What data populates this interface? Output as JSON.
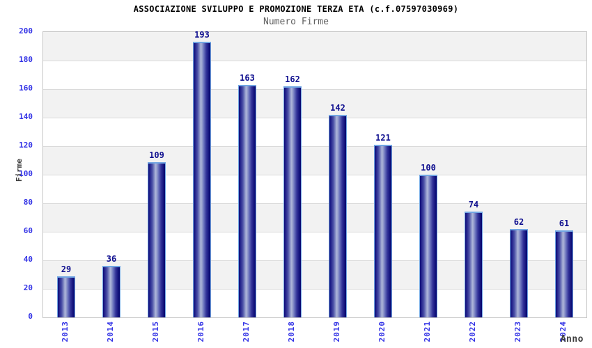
{
  "chart_data": {
    "type": "bar",
    "title": "ASSOCIAZIONE SVILUPPO E PROMOZIONE TERZA ETA (c.f.07597030969)",
    "subtitle": "Numero Firme",
    "xlabel": "Anno",
    "ylabel": "Firme",
    "categories": [
      "2013",
      "2014",
      "2015",
      "2016",
      "2017",
      "2018",
      "2019",
      "2020",
      "2021",
      "2022",
      "2023",
      "2024"
    ],
    "values": [
      29,
      36,
      109,
      193,
      163,
      162,
      142,
      121,
      100,
      74,
      62,
      61
    ],
    "ylim": [
      0,
      200
    ],
    "ytick_step": 20,
    "grid": true,
    "legend": "none",
    "bands": "alternating gray/white horizontal bands of 20 units",
    "colors": {
      "title_color": "#000000",
      "subtitle_color": "#5f5f5f",
      "axis_title_color": "#3d3d3d",
      "tick_label": "#3333e6",
      "value_label": "#0f0f8f",
      "bar_dark": "#0a0a78",
      "bar_light": "#aeb6da",
      "bar_outline": "#72a6e3",
      "band_gray": "#f2f2f2",
      "gridline": "#dadada",
      "plot_border": "#c6c6c6"
    }
  }
}
